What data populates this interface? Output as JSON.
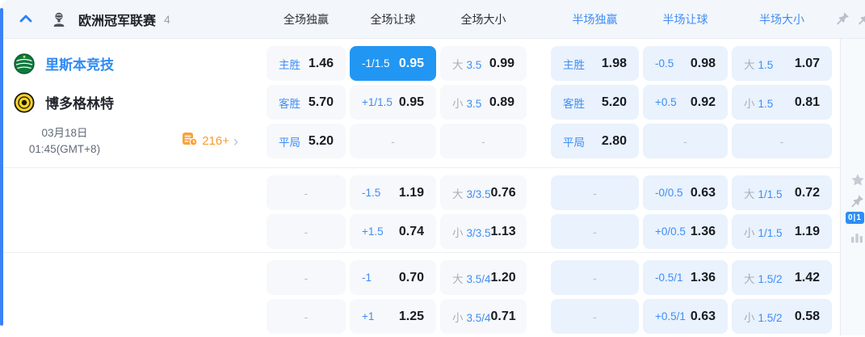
{
  "colors": {
    "accent_blue": "#3b82f6",
    "selected_cell_bg": "#2196f3",
    "blue_text": "#3f8df6",
    "orange": "#f99a2d",
    "full_cell_bg": "#f6f8fb",
    "half_cell_bg": "#e9f2fd"
  },
  "header": {
    "league_title": "欧洲冠军联赛",
    "match_count": "4",
    "columns": [
      {
        "label": "全场独赢",
        "scope": "full"
      },
      {
        "label": "全场让球",
        "scope": "full"
      },
      {
        "label": "全场大小",
        "scope": "full"
      },
      {
        "label": "半场独赢",
        "scope": "half"
      },
      {
        "label": "半场让球",
        "scope": "half"
      },
      {
        "label": "半场大小",
        "scope": "half"
      }
    ]
  },
  "match": {
    "home_team": "里斯本竞技",
    "away_team": "博多格林特",
    "date": "03月18日",
    "time": "01:45(GMT+8)",
    "more_markets_label": "216+"
  },
  "side_rail": {
    "score_badge": "0|1"
  },
  "odds": {
    "sections": [
      {
        "rows": [
          [
            {
              "label": "主胜",
              "odds": "1.46"
            },
            {
              "label": "-1/1.5",
              "odds": "0.95",
              "selected": true
            },
            {
              "prefix": "大",
              "label": "3.5",
              "odds": "0.99"
            },
            {
              "label": "主胜",
              "odds": "1.98"
            },
            {
              "label": "-0.5",
              "odds": "0.98"
            },
            {
              "prefix": "大",
              "label": "1.5",
              "odds": "1.07"
            }
          ],
          [
            {
              "label": "客胜",
              "odds": "5.70"
            },
            {
              "label": "+1/1.5",
              "odds": "0.95"
            },
            {
              "prefix": "小",
              "label": "3.5",
              "odds": "0.89"
            },
            {
              "label": "客胜",
              "odds": "5.20"
            },
            {
              "label": "+0.5",
              "odds": "0.92"
            },
            {
              "prefix": "小",
              "label": "1.5",
              "odds": "0.81"
            }
          ],
          [
            {
              "label": "平局",
              "odds": "5.20"
            },
            {
              "dash": true
            },
            {
              "dash": true
            },
            {
              "label": "平局",
              "odds": "2.80"
            },
            {
              "dash": true
            },
            {
              "dash": true
            }
          ]
        ]
      },
      {
        "rows": [
          [
            {
              "dash": true
            },
            {
              "label": "-1.5",
              "odds": "1.19"
            },
            {
              "prefix": "大",
              "label": "3/3.5",
              "odds": "0.76"
            },
            {
              "dash": true
            },
            {
              "label": "-0/0.5",
              "odds": "0.63"
            },
            {
              "prefix": "大",
              "label": "1/1.5",
              "odds": "0.72"
            }
          ],
          [
            {
              "dash": true
            },
            {
              "label": "+1.5",
              "odds": "0.74"
            },
            {
              "prefix": "小",
              "label": "3/3.5",
              "odds": "1.13"
            },
            {
              "dash": true
            },
            {
              "label": "+0/0.5",
              "odds": "1.36"
            },
            {
              "prefix": "小",
              "label": "1/1.5",
              "odds": "1.19"
            }
          ]
        ]
      },
      {
        "rows": [
          [
            {
              "dash": true
            },
            {
              "label": "-1",
              "odds": "0.70"
            },
            {
              "prefix": "大",
              "label": "3.5/4",
              "odds": "1.20"
            },
            {
              "dash": true
            },
            {
              "label": "-0.5/1",
              "odds": "1.36"
            },
            {
              "prefix": "大",
              "label": "1.5/2",
              "odds": "1.42"
            }
          ],
          [
            {
              "dash": true
            },
            {
              "label": "+1",
              "odds": "1.25"
            },
            {
              "prefix": "小",
              "label": "3.5/4",
              "odds": "0.71"
            },
            {
              "dash": true
            },
            {
              "label": "+0.5/1",
              "odds": "0.63"
            },
            {
              "prefix": "小",
              "label": "1.5/2",
              "odds": "0.58"
            }
          ]
        ]
      }
    ]
  }
}
